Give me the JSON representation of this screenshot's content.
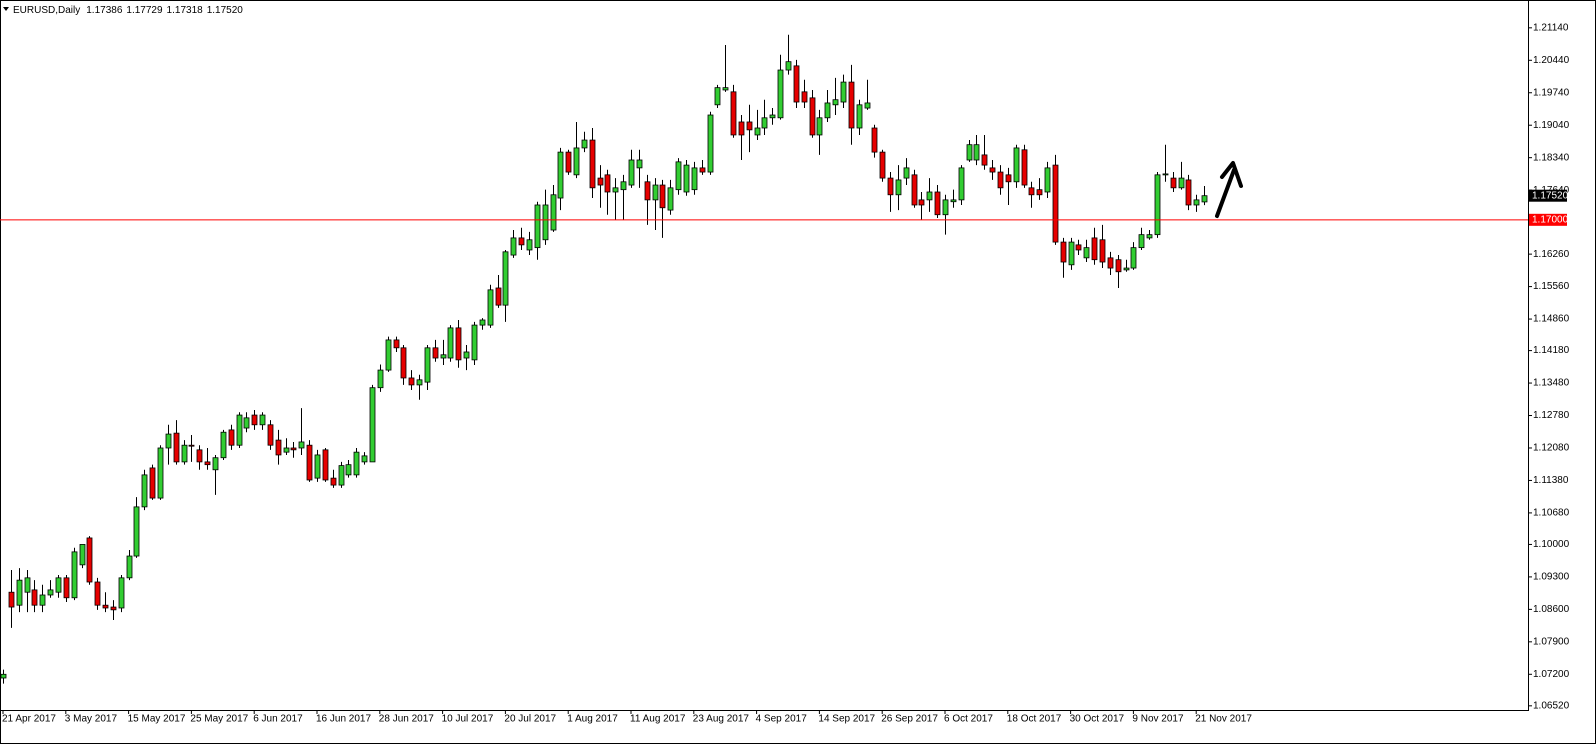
{
  "chart_data": {
    "type": "candlestick",
    "title": "EURUSD,Daily",
    "header_values": [
      "1.17386",
      "1.17729",
      "1.17318",
      "1.17520"
    ],
    "categories": [
      "21 Apr 2017",
      null,
      null,
      null,
      null,
      null,
      null,
      null,
      "3 May 2017",
      null,
      null,
      null,
      null,
      null,
      null,
      null,
      "15 May 2017",
      null,
      null,
      null,
      null,
      null,
      null,
      null,
      "25 May 2017",
      null,
      null,
      null,
      null,
      null,
      null,
      null,
      "6 Jun 2017",
      null,
      null,
      null,
      null,
      null,
      null,
      null,
      "16 Jun 2017",
      null,
      null,
      null,
      null,
      null,
      null,
      null,
      "28 Jun 2017",
      null,
      null,
      null,
      null,
      null,
      null,
      null,
      "10 Jul 2017",
      null,
      null,
      null,
      null,
      null,
      null,
      null,
      "20 Jul 2017",
      null,
      null,
      null,
      null,
      null,
      null,
      null,
      "1 Aug 2017",
      null,
      null,
      null,
      null,
      null,
      null,
      null,
      "11 Aug 2017",
      null,
      null,
      null,
      null,
      null,
      null,
      null,
      "23 Aug 2017",
      null,
      null,
      null,
      null,
      null,
      null,
      null,
      "4 Sep 2017",
      null,
      null,
      null,
      null,
      null,
      null,
      null,
      "14 Sep 2017",
      null,
      null,
      null,
      null,
      null,
      null,
      null,
      "26 Sep 2017",
      null,
      null,
      null,
      null,
      null,
      null,
      null,
      "6 Oct 2017",
      null,
      null,
      null,
      null,
      null,
      null,
      null,
      "18 Oct 2017",
      null,
      null,
      null,
      null,
      null,
      null,
      null,
      "30 Oct 2017",
      null,
      null,
      null,
      null,
      null,
      null,
      null,
      "9 Nov 2017",
      null,
      null,
      null,
      null,
      null,
      null,
      null,
      "21 Nov 2017",
      null
    ],
    "open": [
      1.0712,
      1.0897,
      1.0869,
      1.0897,
      1.0902,
      1.0869,
      1.0891,
      1.0897,
      1.0928,
      1.0885,
      1.0956,
      1.1014,
      1.0919,
      1.0869,
      1.0865,
      1.0863,
      1.0928,
      1.0975,
      1.1081,
      1.1165,
      1.11,
      1.1208,
      1.124,
      1.1178,
      1.1214,
      1.1204,
      1.1178,
      1.1161,
      1.1187,
      1.1247,
      1.1214,
      1.1251,
      1.1279,
      1.1258,
      1.1258,
      1.1225,
      1.1199,
      1.1208,
      1.1208,
      1.1214,
      1.1143,
      1.1204,
      1.1143,
      1.1128,
      1.115,
      1.115,
      1.1178,
      1.1178,
      1.1338,
      1.1376,
      1.1441,
      1.1424,
      1.1359,
      1.1344,
      1.135,
      1.1424,
      1.1402,
      1.1402,
      1.1467,
      1.1402,
      1.1398,
      1.1473,
      1.1473,
      1.1553,
      1.1516,
      1.1624,
      1.1661,
      1.1635,
      1.164,
      1.1657,
      1.1678,
      1.1747,
      1.1846,
      1.1797,
      1.1855,
      1.1872,
      1.179,
      1.1797,
      1.176,
      1.1765,
      1.1775,
      1.1812,
      1.1782,
      1.1743,
      1.1775,
      1.1721,
      1.1765,
      1.176,
      1.1765,
      1.1812,
      1.1803,
      1.1948,
      1.198,
      1.1976,
      1.1911,
      1.1911,
      1.1883,
      1.1898,
      1.192,
      1.192,
      1.2023,
      1.2032,
      1.1976,
      1.1963,
      1.1883,
      1.192,
      1.1948,
      1.1954,
      1.1997,
      1.1898,
      1.1941,
      1.1898,
      1.1846,
      1.179,
      1.1754,
      1.179,
      1.1797,
      1.1743,
      1.1743,
      1.176,
      1.1711,
      1.1739,
      1.1743,
      1.1829,
      1.1829,
      1.184,
      1.1812,
      1.1803,
      1.1797,
      1.1782,
      1.1851,
      1.1769,
      1.1765,
      1.176,
      1.1818,
      1.1652,
      1.1603,
      1.1646,
      1.1618,
      1.1661,
      1.1657,
      1.1618,
      1.1614,
      1.1592,
      1.1596,
      1.164,
      1.1661,
      1.1668,
      1.1797,
      1.179,
      1.1769,
      1.1786,
      1.1732,
      1.17386
    ],
    "high": [
      1.073,
      1.0945,
      1.0949,
      1.0945,
      1.0923,
      1.0913,
      1.0923,
      1.0934,
      1.0934,
      1.0993,
      1.1,
      1.1018,
      1.0928,
      1.0897,
      1.088,
      1.0934,
      1.0988,
      1.1102,
      1.1161,
      1.1172,
      1.1214,
      1.1258,
      1.1268,
      1.1225,
      1.1236,
      1.1214,
      1.1208,
      1.1193,
      1.1247,
      1.1258,
      1.1285,
      1.1285,
      1.129,
      1.1285,
      1.1268,
      1.1247,
      1.1229,
      1.1221,
      1.1294,
      1.1225,
      1.1204,
      1.1208,
      1.1161,
      1.1178,
      1.1182,
      1.1208,
      1.1199,
      1.1344,
      1.1388,
      1.1448,
      1.1448,
      1.143,
      1.1376,
      1.1366,
      1.143,
      1.1441,
      1.1441,
      1.1473,
      1.1484,
      1.143,
      1.148,
      1.1488,
      1.156,
      1.1581,
      1.1635,
      1.1678,
      1.1683,
      1.1674,
      1.1739,
      1.1765,
      1.1775,
      1.1855,
      1.1851,
      1.1911,
      1.189,
      1.1898,
      1.1818,
      1.1808,
      1.179,
      1.1797,
      1.1851,
      1.1851,
      1.1797,
      1.179,
      1.1786,
      1.1786,
      1.1833,
      1.1829,
      1.1825,
      1.1829,
      1.1933,
      1.1991,
      1.2077,
      1.1991,
      1.1926,
      1.1948,
      1.1937,
      1.1959,
      1.1941,
      1.2056,
      1.2099,
      1.2045,
      1.2002,
      1.198,
      1.1937,
      1.198,
      1.2006,
      1.2013,
      1.2034,
      1.1959,
      1.2002,
      1.1905,
      1.1851,
      1.1803,
      1.1818,
      1.1833,
      1.1808,
      1.176,
      1.179,
      1.1775,
      1.1754,
      1.1765,
      1.1818,
      1.1872,
      1.1883,
      1.1883,
      1.1829,
      1.1818,
      1.1812,
      1.1862,
      1.1862,
      1.1782,
      1.179,
      1.1825,
      1.184,
      1.1661,
      1.1661,
      1.1657,
      1.1657,
      1.1683,
      1.1689,
      1.1631,
      1.1624,
      1.1614,
      1.1652,
      1.1683,
      1.1678,
      1.1803,
      1.1862,
      1.1803,
      1.1825,
      1.1797,
      1.1754,
      1.17729
    ],
    "low": [
      1.07,
      1.082,
      1.0854,
      1.0854,
      1.0854,
      1.0854,
      1.0885,
      1.0885,
      1.0876,
      1.088,
      1.0949,
      1.0913,
      1.0859,
      1.0854,
      1.0837,
      1.0854,
      1.0923,
      1.0971,
      1.1074,
      1.1096,
      1.1096,
      1.1172,
      1.1172,
      1.1172,
      1.1178,
      1.1161,
      1.1161,
      1.1107,
      1.1182,
      1.1204,
      1.1208,
      1.1242,
      1.1247,
      1.1247,
      1.1204,
      1.1172,
      1.1193,
      1.1187,
      1.1193,
      1.1135,
      1.1135,
      1.1135,
      1.1122,
      1.1122,
      1.1144,
      1.1144,
      1.1172,
      1.1178,
      1.1329,
      1.1372,
      1.1415,
      1.1344,
      1.1333,
      1.1312,
      1.1333,
      1.1394,
      1.1387,
      1.1394,
      1.1381,
      1.1376,
      1.1387,
      1.1463,
      1.1467,
      1.151,
      1.148,
      1.1618,
      1.1635,
      1.1624,
      1.1614,
      1.1646,
      1.1674,
      1.1721,
      1.1797,
      1.179,
      1.1846,
      1.1747,
      1.1726,
      1.1711,
      1.17,
      1.17,
      1.1769,
      1.1769,
      1.1689,
      1.1678,
      1.1661,
      1.1711,
      1.1754,
      1.1752,
      1.1754,
      1.1797,
      1.1797,
      1.1941,
      1.1976,
      1.1877,
      1.1829,
      1.1846,
      1.1872,
      1.1883,
      1.1905,
      1.1916,
      1.2013,
      1.1941,
      1.1941,
      1.1877,
      1.184,
      1.1911,
      1.1926,
      1.1941,
      1.1862,
      1.1883,
      1.1937,
      1.1834,
      1.1782,
      1.1717,
      1.1721,
      1.1775,
      1.1726,
      1.17,
      1.1717,
      1.1704,
      1.1668,
      1.1726,
      1.1732,
      1.1825,
      1.1818,
      1.1808,
      1.1786,
      1.1754,
      1.1732,
      1.1769,
      1.1769,
      1.1726,
      1.1743,
      1.1747,
      1.1646,
      1.1575,
      1.1592,
      1.1624,
      1.1609,
      1.1603,
      1.1596,
      1.1581,
      1.1553,
      1.1588,
      1.1592,
      1.1635,
      1.1657,
      1.1661,
      1.1782,
      1.176,
      1.1765,
      1.1721,
      1.1717,
      1.17318
    ],
    "close": [
      1.072,
      1.0865,
      1.0923,
      1.0928,
      1.0869,
      1.0891,
      1.0902,
      1.0928,
      1.0885,
      1.0984,
      1.1,
      1.0919,
      1.0869,
      1.0863,
      1.0859,
      1.0928,
      1.0975,
      1.1081,
      1.115,
      1.11,
      1.1208,
      1.1238,
      1.1178,
      1.1214,
      1.1212,
      1.1178,
      1.1172,
      1.1187,
      1.1242,
      1.1214,
      1.1279,
      1.1273,
      1.1258,
      1.1279,
      1.1214,
      1.1193,
      1.1208,
      1.1204,
      1.1221,
      1.1139,
      1.1193,
      1.1139,
      1.1128,
      1.117,
      1.1172,
      1.1199,
      1.1191,
      1.1338,
      1.1376,
      1.1441,
      1.1424,
      1.1359,
      1.1344,
      1.1355,
      1.1424,
      1.1402,
      1.1409,
      1.1467,
      1.1398,
      1.1415,
      1.1473,
      1.1484,
      1.1549,
      1.1516,
      1.1631,
      1.1661,
      1.1646,
      1.1657,
      1.1732,
      1.1732,
      1.1754,
      1.1846,
      1.1803,
      1.1855,
      1.1872,
      1.1769,
      1.1775,
      1.176,
      1.1769,
      1.1782,
      1.1829,
      1.1829,
      1.1743,
      1.1775,
      1.1726,
      1.1769,
      1.1825,
      1.1818,
      1.1812,
      1.1803,
      1.1926,
      1.1985,
      1.1985,
      1.1883,
      1.1883,
      1.1894,
      1.1898,
      1.192,
      1.1926,
      1.2023,
      1.2041,
      1.1954,
      1.1954,
      1.1883,
      1.192,
      1.1952,
      1.1959,
      1.1997,
      1.1898,
      1.1948,
      1.1952,
      1.1846,
      1.179,
      1.1754,
      1.1786,
      1.1812,
      1.1732,
      1.1732,
      1.176,
      1.1711,
      1.1743,
      1.1743,
      1.1812,
      1.1862,
      1.1862,
      1.1818,
      1.1803,
      1.1769,
      1.1782,
      1.1855,
      1.1775,
      1.1754,
      1.1754,
      1.1812,
      1.1652,
      1.1609,
      1.1652,
      1.1635,
      1.164,
      1.1614,
      1.1609,
      1.1596,
      1.1588,
      1.1596,
      1.164,
      1.1668,
      1.1668,
      1.1797,
      1.1799,
      1.1769,
      1.179,
      1.1732,
      1.1743,
      1.1752
    ],
    "up_color": "#32cd32",
    "down_color": "#e60000",
    "ylim": [
      1.0643,
      1.2174
    ],
    "yticks": [
      {
        "value": 1.2114,
        "label": "1.21140"
      },
      {
        "value": 1.2044,
        "label": "1.20440"
      },
      {
        "value": 1.1974,
        "label": "1.19740"
      },
      {
        "value": 1.1904,
        "label": "1.19040"
      },
      {
        "value": 1.1834,
        "label": "1.18340"
      },
      {
        "value": 1.1764,
        "label": "1.17640"
      },
      {
        "value": 1.1626,
        "label": "1.16260"
      },
      {
        "value": 1.1556,
        "label": "1.15560"
      },
      {
        "value": 1.1486,
        "label": "1.14860"
      },
      {
        "value": 1.1418,
        "label": "1.14180"
      },
      {
        "value": 1.1348,
        "label": "1.13480"
      },
      {
        "value": 1.1278,
        "label": "1.12780"
      },
      {
        "value": 1.1208,
        "label": "1.12080"
      },
      {
        "value": 1.1138,
        "label": "1.11380"
      },
      {
        "value": 1.1068,
        "label": "1.10680"
      },
      {
        "value": 1.1,
        "label": "1.10000"
      },
      {
        "value": 1.093,
        "label": "1.09300"
      },
      {
        "value": 1.086,
        "label": "1.08600"
      },
      {
        "value": 1.079,
        "label": "1.07900"
      },
      {
        "value": 1.072,
        "label": "1.07200"
      },
      {
        "value": 1.0652,
        "label": "1.06520"
      }
    ],
    "price_line": {
      "value": 1.1752,
      "label": "1.17520"
    },
    "level_line": {
      "value": 1.17,
      "label": "1.17000",
      "color": "#ff0000"
    }
  }
}
